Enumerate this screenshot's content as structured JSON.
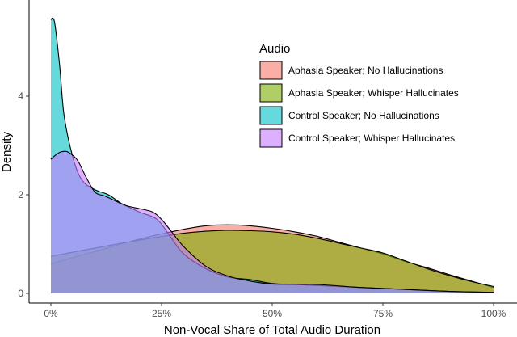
{
  "chart_data": {
    "type": "area",
    "xlabel": "Non-Vocal Share of Total Audio Duration",
    "ylabel": "Density",
    "xlim": [
      -0.02,
      1.02
    ],
    "ylim": [
      -0.02,
      5.8
    ],
    "x_ticks": [
      0,
      0.25,
      0.5,
      0.75,
      1.0
    ],
    "x_tick_labels": [
      "0%",
      "25%",
      "50%",
      "75%",
      "100%"
    ],
    "y_ticks": [
      0,
      2,
      4
    ],
    "y_tick_labels": [
      "0",
      "2",
      "4"
    ],
    "grid": false,
    "legend": {
      "title": "Audio",
      "position": "top-right"
    },
    "series": [
      {
        "name": "Aphasia Speaker; No Hallucinations",
        "color": "#F8766D",
        "x": [
          0,
          0.1,
          0.2,
          0.3,
          0.35,
          0.4,
          0.45,
          0.5,
          0.55,
          0.6,
          0.65,
          0.7,
          0.75,
          0.8,
          0.85,
          0.9,
          0.95,
          1.0
        ],
        "y": [
          0.6,
          0.85,
          1.1,
          1.3,
          1.37,
          1.39,
          1.37,
          1.32,
          1.25,
          1.16,
          1.04,
          0.92,
          0.8,
          0.65,
          0.52,
          0.38,
          0.25,
          0.12
        ]
      },
      {
        "name": "Aphasia Speaker; Whisper Hallucinates",
        "color": "#7CAE00",
        "x": [
          0,
          0.1,
          0.2,
          0.3,
          0.35,
          0.4,
          0.45,
          0.5,
          0.55,
          0.6,
          0.65,
          0.7,
          0.75,
          0.8,
          0.85,
          0.9,
          0.95,
          1.0
        ],
        "y": [
          0.75,
          0.92,
          1.08,
          1.22,
          1.26,
          1.28,
          1.27,
          1.25,
          1.2,
          1.12,
          1.02,
          0.92,
          0.82,
          0.66,
          0.5,
          0.36,
          0.24,
          0.14
        ]
      },
      {
        "name": "Control Speaker; No Hallucinations",
        "color": "#00BFC4",
        "x": [
          0,
          0.005,
          0.01,
          0.02,
          0.03,
          0.05,
          0.07,
          0.1,
          0.13,
          0.16,
          0.2,
          0.24,
          0.27,
          0.3,
          0.35,
          0.4,
          0.45,
          0.5,
          0.55,
          0.6,
          0.7,
          0.8,
          0.9,
          1.0
        ],
        "y": [
          5.55,
          5.58,
          5.4,
          4.6,
          3.6,
          2.75,
          2.3,
          2.1,
          2.0,
          1.82,
          1.65,
          1.5,
          1.15,
          0.8,
          0.5,
          0.33,
          0.28,
          0.2,
          0.18,
          0.16,
          0.12,
          0.08,
          0.04,
          0.02
        ]
      },
      {
        "name": "Control Speaker; Whisper Hallucinates",
        "color": "#C77CFF",
        "x": [
          0,
          0.01,
          0.02,
          0.03,
          0.04,
          0.06,
          0.08,
          0.1,
          0.12,
          0.14,
          0.17,
          0.2,
          0.23,
          0.25,
          0.27,
          0.3,
          0.35,
          0.4,
          0.45,
          0.5,
          0.6,
          0.7,
          0.8,
          0.9,
          1.0
        ],
        "y": [
          2.72,
          2.8,
          2.86,
          2.88,
          2.86,
          2.7,
          2.35,
          2.05,
          1.98,
          1.9,
          1.78,
          1.72,
          1.65,
          1.5,
          1.28,
          0.95,
          0.55,
          0.35,
          0.25,
          0.19,
          0.18,
          0.12,
          0.08,
          0.04,
          0.02
        ]
      }
    ]
  }
}
